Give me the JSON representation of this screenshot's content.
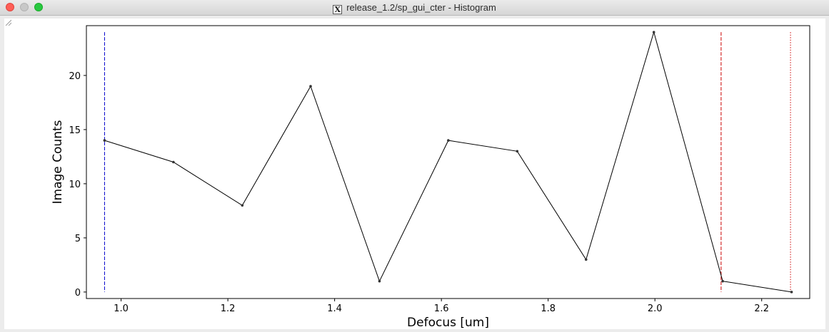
{
  "window": {
    "title": "release_1.2/sp_gui_cter - Histogram",
    "app_icon": "x11-icon",
    "app_icon_glyph": "X"
  },
  "chart_data": {
    "type": "line",
    "title": "",
    "xlabel": "Defocus [um]",
    "ylabel": "Image Counts",
    "xlim": [
      0.935,
      2.29
    ],
    "ylim": [
      -0.6,
      24.6
    ],
    "xticks": [
      1.0,
      1.2,
      1.4,
      1.6,
      1.8,
      2.0,
      2.2
    ],
    "xtick_labels": [
      "1.0",
      "1.2",
      "1.4",
      "1.6",
      "1.8",
      "2.0",
      "2.2"
    ],
    "yticks": [
      0,
      5,
      10,
      15,
      20
    ],
    "ytick_labels": [
      "0",
      "5",
      "10",
      "15",
      "20"
    ],
    "grid": false,
    "series": [
      {
        "color": "#000000",
        "x": [
          0.969,
          1.098,
          1.227,
          1.355,
          1.484,
          1.613,
          1.742,
          1.871,
          1.998,
          2.127,
          2.256
        ],
        "y": [
          14,
          12,
          8,
          19,
          1,
          14,
          13,
          3,
          24,
          1,
          0
        ]
      }
    ],
    "vlines": [
      {
        "x": 0.969,
        "color": "#0000cc",
        "style": "dashed"
      },
      {
        "x": 2.124,
        "color": "#cc0000",
        "style": "dashed"
      },
      {
        "x": 2.254,
        "color": "#cc0000",
        "style": "dotted"
      }
    ]
  }
}
